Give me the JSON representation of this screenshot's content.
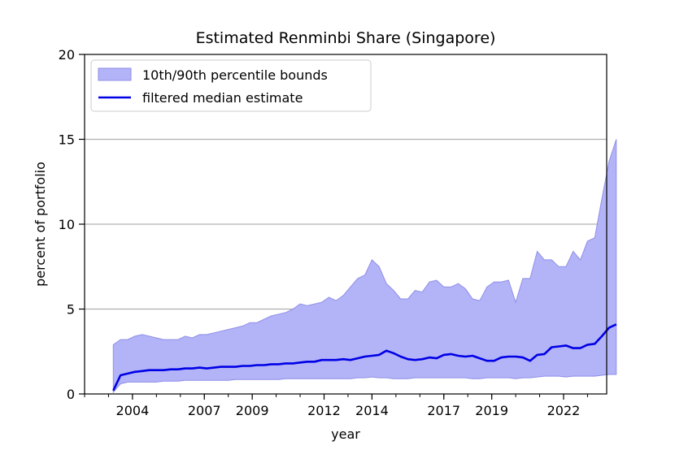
{
  "chart_data": {
    "type": "area",
    "title": "Estimated Renminbi Share (Singapore)",
    "xlabel": "year",
    "ylabel": "percent of portfolio",
    "xlim": [
      2002.0,
      2023.8
    ],
    "ylim": [
      0,
      20
    ],
    "xticks": [
      2004,
      2007,
      2009,
      2012,
      2014,
      2017,
      2019,
      2022
    ],
    "yticks": [
      0,
      5,
      10,
      15,
      20
    ],
    "grid": "horizontal",
    "legend_position": "top-left",
    "colors": {
      "band": "#b3b3f7",
      "band_edge": "#8f8fe8",
      "median": "#0000e6",
      "grid": "#b0b0b0"
    },
    "series": [
      {
        "name": "10th/90th percentile bounds",
        "kind": "band",
        "x": [
          2003.2,
          2003.5,
          2003.8,
          2004.1,
          2004.4,
          2004.7,
          2005.0,
          2005.3,
          2005.6,
          2005.9,
          2006.2,
          2006.5,
          2006.8,
          2007.1,
          2007.4,
          2007.7,
          2008.0,
          2008.3,
          2008.6,
          2008.9,
          2009.2,
          2009.5,
          2009.8,
          2010.1,
          2010.4,
          2010.7,
          2011.0,
          2011.3,
          2011.6,
          2011.9,
          2012.2,
          2012.5,
          2012.8,
          2013.1,
          2013.4,
          2013.7,
          2014.0,
          2014.3,
          2014.6,
          2014.9,
          2015.2,
          2015.5,
          2015.8,
          2016.1,
          2016.4,
          2016.7,
          2017.0,
          2017.3,
          2017.6,
          2017.9,
          2018.2,
          2018.5,
          2018.8,
          2019.1,
          2019.4,
          2019.7,
          2020.0,
          2020.3,
          2020.6,
          2020.9,
          2021.2,
          2021.5,
          2021.8,
          2022.1,
          2022.4,
          2022.7,
          2023.0
        ],
        "upper": [
          2.9,
          3.2,
          3.2,
          3.4,
          3.5,
          3.4,
          3.3,
          3.2,
          3.2,
          3.2,
          3.4,
          3.3,
          3.5,
          3.5,
          3.6,
          3.7,
          3.8,
          3.9,
          4.0,
          4.2,
          4.2,
          4.4,
          4.6,
          4.7,
          4.8,
          5.0,
          5.3,
          5.2,
          5.3,
          5.4,
          5.7,
          5.5,
          5.8,
          6.3,
          6.8,
          7.0,
          7.9,
          7.5,
          6.5,
          6.1,
          5.6,
          5.6,
          6.1,
          6.0,
          6.6,
          6.7,
          6.3,
          6.3,
          6.5,
          6.2,
          5.6,
          5.5,
          6.3,
          6.6,
          6.6,
          6.7,
          5.4,
          6.8,
          6.8,
          8.4,
          7.9,
          7.9,
          7.5,
          7.5,
          8.4,
          7.9,
          9.0
        ],
        "lower": [
          0.1,
          0.6,
          0.7,
          0.7,
          0.7,
          0.7,
          0.7,
          0.75,
          0.75,
          0.75,
          0.8,
          0.8,
          0.8,
          0.8,
          0.8,
          0.8,
          0.8,
          0.85,
          0.85,
          0.85,
          0.85,
          0.85,
          0.85,
          0.85,
          0.9,
          0.9,
          0.9,
          0.9,
          0.9,
          0.9,
          0.9,
          0.9,
          0.9,
          0.9,
          0.95,
          0.95,
          1.0,
          0.95,
          0.95,
          0.9,
          0.9,
          0.9,
          0.95,
          0.95,
          0.95,
          0.95,
          0.95,
          0.95,
          0.95,
          0.95,
          0.9,
          0.9,
          0.95,
          0.95,
          0.95,
          0.95,
          0.9,
          0.95,
          0.95,
          1.0,
          1.05,
          1.05,
          1.05,
          1.0,
          1.05,
          1.05,
          1.05
        ]
      },
      {
        "name": "filtered median estimate",
        "kind": "line",
        "x": [
          2003.2,
          2003.5,
          2003.8,
          2004.1,
          2004.4,
          2004.7,
          2005.0,
          2005.3,
          2005.6,
          2005.9,
          2006.2,
          2006.5,
          2006.8,
          2007.1,
          2007.4,
          2007.7,
          2008.0,
          2008.3,
          2008.6,
          2008.9,
          2009.2,
          2009.5,
          2009.8,
          2010.1,
          2010.4,
          2010.7,
          2011.0,
          2011.3,
          2011.6,
          2011.9,
          2012.2,
          2012.5,
          2012.8,
          2013.1,
          2013.4,
          2013.7,
          2014.0,
          2014.3,
          2014.6,
          2014.9,
          2015.2,
          2015.5,
          2015.8,
          2016.1,
          2016.4,
          2016.7,
          2017.0,
          2017.3,
          2017.6,
          2017.9,
          2018.2,
          2018.5,
          2018.8,
          2019.1,
          2019.4,
          2019.7,
          2020.0,
          2020.3,
          2020.6,
          2020.9,
          2021.2,
          2021.5,
          2021.8,
          2022.1,
          2022.4,
          2022.7,
          2023.0
        ],
        "values": [
          0.2,
          1.1,
          1.2,
          1.3,
          1.35,
          1.4,
          1.4,
          1.4,
          1.45,
          1.45,
          1.5,
          1.5,
          1.55,
          1.5,
          1.55,
          1.6,
          1.6,
          1.6,
          1.65,
          1.65,
          1.7,
          1.7,
          1.75,
          1.75,
          1.8,
          1.8,
          1.85,
          1.9,
          1.9,
          2.0,
          2.0,
          2.0,
          2.05,
          2.0,
          2.1,
          2.2,
          2.25,
          2.3,
          2.55,
          2.4,
          2.2,
          2.05,
          2.0,
          2.05,
          2.15,
          2.1,
          2.3,
          2.35,
          2.25,
          2.2,
          2.25,
          2.1,
          1.95,
          1.95,
          2.15,
          2.2,
          2.2,
          2.15,
          1.95,
          2.3,
          2.35,
          2.75,
          2.8,
          2.85,
          2.7,
          2.7,
          2.9
        ]
      }
    ],
    "tail": {
      "x": [
        2023.0,
        2023.3,
        2023.6,
        2023.9,
        2024.2
      ],
      "upper": [
        9.0,
        9.2,
        11.5,
        13.7,
        15.0
      ],
      "lower": [
        1.05,
        1.05,
        1.1,
        1.15,
        1.15
      ],
      "median": [
        2.9,
        2.95,
        3.4,
        3.9,
        4.1
      ]
    }
  }
}
